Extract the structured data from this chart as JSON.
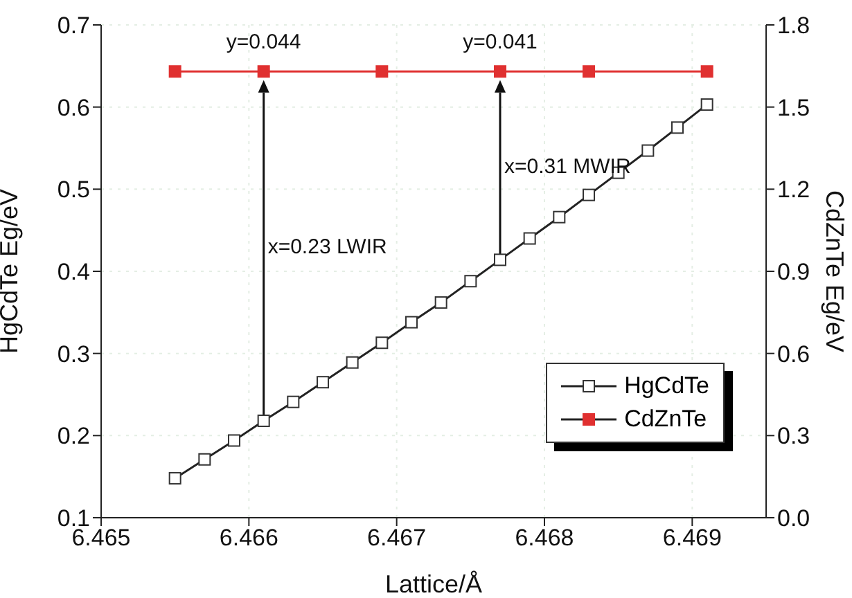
{
  "chart_data": {
    "type": "line",
    "xlabel": "Lattice/Å",
    "ylabel": "HgCdTe Eg/eV",
    "y2label": "CdZnTe Eg/eV",
    "xlim": [
      6.465,
      6.4695
    ],
    "xticks": [
      6.465,
      6.466,
      6.467,
      6.468,
      6.469
    ],
    "ylim": [
      0.1,
      0.7
    ],
    "yticks": [
      0.1,
      0.2,
      0.3,
      0.4,
      0.5,
      0.6,
      0.7
    ],
    "y2lim": [
      0,
      1.8
    ],
    "y2ticks": [
      {
        "value": 0,
        "label": "0.0"
      },
      0.3,
      0.6,
      0.9,
      1.2,
      1.5,
      1.8
    ],
    "grid": true,
    "legend": "bottom right",
    "marker": "square",
    "line_style": "solid",
    "series": [
      {
        "name": "HgCdTe",
        "color": "#222222",
        "x": [
          6.4655,
          6.4657,
          6.4659,
          6.4661,
          6.4663,
          6.4665,
          6.4667,
          6.4669,
          6.4671,
          6.4673,
          6.4675,
          6.4677,
          6.4679,
          6.4681,
          6.4683,
          6.4685,
          6.4687,
          6.4689,
          6.4691
        ],
        "values": [
          0.148,
          0.171,
          0.194,
          0.218,
          0.241,
          0.265,
          0.289,
          0.313,
          0.338,
          0.362,
          0.388,
          0.414,
          0.44,
          0.466,
          0.493,
          0.52,
          0.547,
          0.575,
          0.603
        ]
      },
      {
        "name": "CdZnTe",
        "color": "#e03030",
        "axis": "y2",
        "x": [
          6.4655,
          6.4661,
          6.4669,
          6.4677,
          6.4683,
          6.4691
        ],
        "values": [
          1.63,
          1.63,
          1.63,
          1.63,
          1.63,
          1.63
        ]
      }
    ],
    "annotations": [
      {
        "text": "y=0.044",
        "x": 6.4661,
        "y": 0.643
      },
      {
        "text": "y=0.041",
        "x": 6.4677,
        "y": 0.643
      },
      "x=0.23 LWIR",
      "x=0.31 MWIR"
    ]
  }
}
